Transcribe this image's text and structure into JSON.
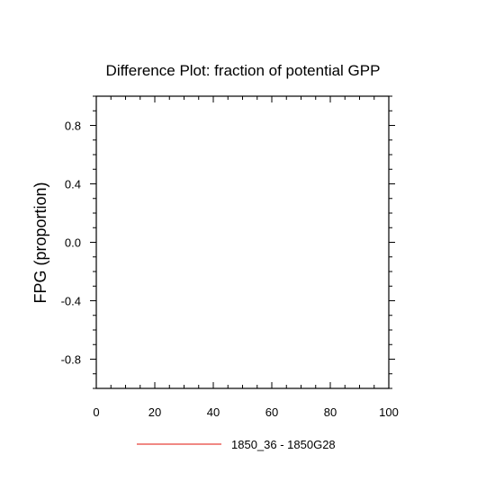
{
  "chart_data": {
    "type": "line",
    "title": "Difference Plot: fraction of potential GPP",
    "xlabel": "",
    "ylabel": "FPG  (proportion)",
    "xlim": [
      0,
      100
    ],
    "ylim": [
      -1,
      1
    ],
    "x_ticks": [
      0,
      20,
      40,
      60,
      80,
      100
    ],
    "x_tick_labels": [
      "0",
      "20",
      "40",
      "60",
      "80",
      "100"
    ],
    "x_minor_step": 5,
    "y_ticks": [
      -0.8,
      -0.4,
      0.0,
      0.4,
      0.8
    ],
    "y_tick_labels": [
      "-0.8",
      "-0.4",
      "0.0",
      "0.4",
      "0.8"
    ],
    "y_minor_step": 0.1,
    "grid": false,
    "legend_position": "bottom-center",
    "series": [
      {
        "name": "1850_36 - 1850G28",
        "color": "#e8403a",
        "x": [],
        "y": []
      }
    ]
  }
}
